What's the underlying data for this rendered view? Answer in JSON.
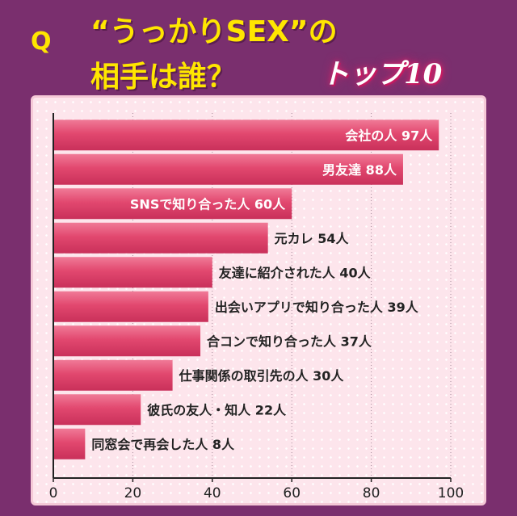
{
  "header": {
    "q_mark": "Q",
    "title_line1": "“うっかりSEX”の",
    "title_line2": "相手は誰？",
    "badge": "トップ10"
  },
  "colors": {
    "background": "#7a2f6e",
    "title": "#ffe600",
    "bar": "#e2486f",
    "bar_highlight": "#f07a97",
    "panel": "#fde5ec"
  },
  "chart_data": {
    "type": "bar",
    "orientation": "horizontal",
    "categories": [
      "会社の人",
      "男友達",
      "SNSで知り合った人",
      "元カレ",
      "友達に紹介された人",
      "出会いアプリで知り合った人",
      "合コンで知り合った人",
      "仕事関係の取引先の人",
      "彼氏の友人・知人",
      "同窓会で再会した人"
    ],
    "values": [
      97,
      88,
      60,
      54,
      40,
      39,
      37,
      30,
      22,
      8
    ],
    "data_labels": [
      "会社の人 97人",
      "男友達 88人",
      "SNSで知り合った人 60人",
      "元カレ 54人",
      "友達に紹介された人 40人",
      "出会いアプリで知り合った人 39人",
      "合コンで知り合った人 37人",
      "仕事関係の取引先の人 30人",
      "彼氏の友人・知人 22人",
      "同窓会で再会した人 8人"
    ],
    "label_inside": [
      true,
      true,
      true,
      false,
      false,
      false,
      false,
      false,
      false,
      false
    ],
    "xlim": [
      0,
      100
    ],
    "xticks": [
      "0",
      "20",
      "40",
      "60",
      "80",
      "100"
    ],
    "grid": true
  }
}
